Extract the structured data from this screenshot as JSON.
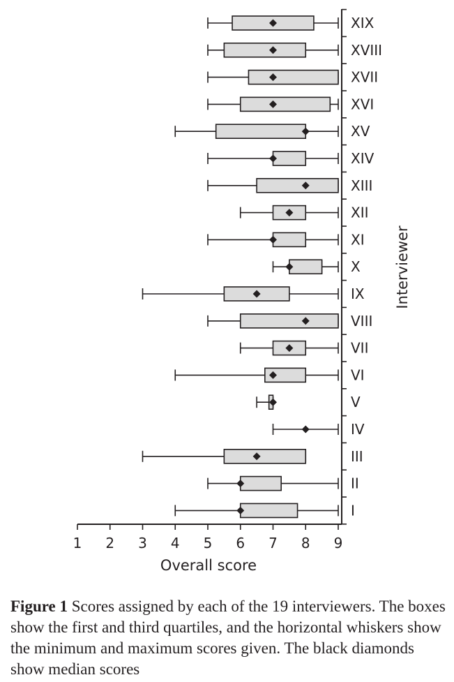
{
  "chart_data": {
    "type": "boxplot",
    "orientation": "horizontal",
    "xlabel": "Overall score",
    "ylabel": "Interviewer",
    "xlim": [
      1,
      9
    ],
    "xticks": [
      "1",
      "2",
      "3",
      "4",
      "5",
      "6",
      "7",
      "8",
      "9"
    ],
    "y_axis_position": "right",
    "box_fill": "#dcdcdc",
    "stroke_color": "#231f20",
    "categories": [
      "XIX",
      "XVIII",
      "XVII",
      "XVI",
      "XV",
      "XIV",
      "XIII",
      "XII",
      "XI",
      "X",
      "IX",
      "VIII",
      "VII",
      "VI",
      "V",
      "IV",
      "III",
      "II",
      "I"
    ],
    "boxes": [
      {
        "label": "XIX",
        "min": 5,
        "q1": 5.75,
        "median": 7,
        "q3": 8.25,
        "max": 9
      },
      {
        "label": "XVIII",
        "min": 5,
        "q1": 5.5,
        "median": 7,
        "q3": 8,
        "max": 9
      },
      {
        "label": "XVII",
        "min": 5,
        "q1": 6.25,
        "median": 7,
        "q3": 9,
        "max": 9
      },
      {
        "label": "XVI",
        "min": 5,
        "q1": 6,
        "median": 7,
        "q3": 8.75,
        "max": 9
      },
      {
        "label": "XV",
        "min": 4,
        "q1": 5.25,
        "median": 8,
        "q3": 8,
        "max": 9
      },
      {
        "label": "XIV",
        "min": 5,
        "q1": 7,
        "median": 7,
        "q3": 8,
        "max": 9
      },
      {
        "label": "XIII",
        "min": 5,
        "q1": 6.5,
        "median": 8,
        "q3": 9,
        "max": 9
      },
      {
        "label": "XII",
        "min": 6,
        "q1": 7,
        "median": 7.5,
        "q3": 8,
        "max": 9
      },
      {
        "label": "XI",
        "min": 5,
        "q1": 7,
        "median": 7,
        "q3": 8,
        "max": 9
      },
      {
        "label": "X",
        "min": 7,
        "q1": 7.5,
        "median": 7.5,
        "q3": 8.5,
        "max": 9
      },
      {
        "label": "IX",
        "min": 3,
        "q1": 5.5,
        "median": 6.5,
        "q3": 7.5,
        "max": 9
      },
      {
        "label": "VIII",
        "min": 5,
        "q1": 6,
        "median": 8,
        "q3": 9,
        "max": 9
      },
      {
        "label": "VII",
        "min": 6,
        "q1": 7,
        "median": 7.5,
        "q3": 8,
        "max": 9
      },
      {
        "label": "VI",
        "min": 4,
        "q1": 6.75,
        "median": 7,
        "q3": 8,
        "max": 9
      },
      {
        "label": "V",
        "min": 6.5,
        "q1": 6.875,
        "median": 7,
        "q3": 7,
        "max": 7
      },
      {
        "label": "IV",
        "min": 7,
        "q1": 8,
        "median": 8,
        "q3": 8,
        "max": 9
      },
      {
        "label": "III",
        "min": 3,
        "q1": 5.5,
        "median": 6.5,
        "q3": 8,
        "max": 8
      },
      {
        "label": "II",
        "min": 5,
        "q1": 6,
        "median": 6,
        "q3": 7.25,
        "max": 9
      },
      {
        "label": "I",
        "min": 4,
        "q1": 6,
        "median": 6,
        "q3": 7.75,
        "max": 9
      }
    ]
  },
  "caption": {
    "figure_label": "Figure 1",
    "text": " Scores assigned by each of the 19 interviewers. The boxes show the first and third quartiles, and the horizontal whiskers show the minimum and maximum scores given. The black diamonds show median scores"
  }
}
